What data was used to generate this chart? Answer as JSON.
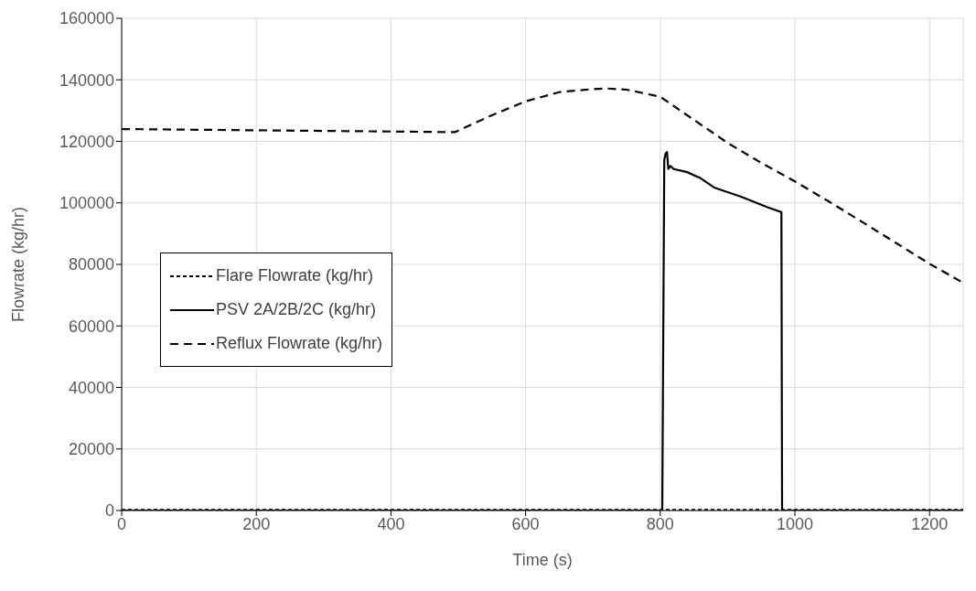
{
  "chart_data": {
    "type": "line",
    "xlabel": "Time (s)",
    "ylabel": "Flowrate (kg/hr)",
    "xlim": [
      0,
      1250
    ],
    "xticks": [
      0,
      200,
      400,
      600,
      800,
      1000,
      1200
    ],
    "ylim": [
      0,
      160000
    ],
    "yticks": [
      0,
      20000,
      40000,
      60000,
      80000,
      100000,
      120000,
      140000,
      160000
    ],
    "grid": true,
    "legend": "left",
    "marker": "none",
    "series": [
      {
        "name": "Flare Flowrate (kg/hr)",
        "color": "#000000",
        "line_style": "dotted",
        "x": [
          0,
          400,
          800,
          1250
        ],
        "values": [
          200,
          200,
          200,
          200
        ]
      },
      {
        "name": "PSV 2A/2B/2C (kg/hr)",
        "color": "#000000",
        "line_style": "solid",
        "x": [
          0,
          800,
          803,
          806,
          808,
          810,
          812,
          815,
          820,
          840,
          860,
          880,
          920,
          960,
          980,
          981,
          1250
        ],
        "values": [
          0,
          0,
          0,
          114000,
          116000,
          116500,
          111000,
          112000,
          111000,
          110000,
          108000,
          105000,
          102000,
          98500,
          97000,
          0,
          0
        ]
      },
      {
        "name": "Reflux Flowrate (kg/hr)",
        "color": "#000000",
        "line_style": "dashed",
        "x": [
          0,
          100,
          200,
          300,
          400,
          495,
          550,
          600,
          650,
          700,
          720,
          750,
          800,
          850,
          900,
          950,
          1000,
          1050,
          1100,
          1150,
          1200,
          1250
        ],
        "values": [
          124000,
          123800,
          123600,
          123400,
          123200,
          123000,
          128500,
          133000,
          136000,
          137000,
          137200,
          136800,
          134500,
          127000,
          119500,
          113000,
          107000,
          100500,
          93800,
          87000,
          80200,
          74000
        ]
      }
    ]
  }
}
